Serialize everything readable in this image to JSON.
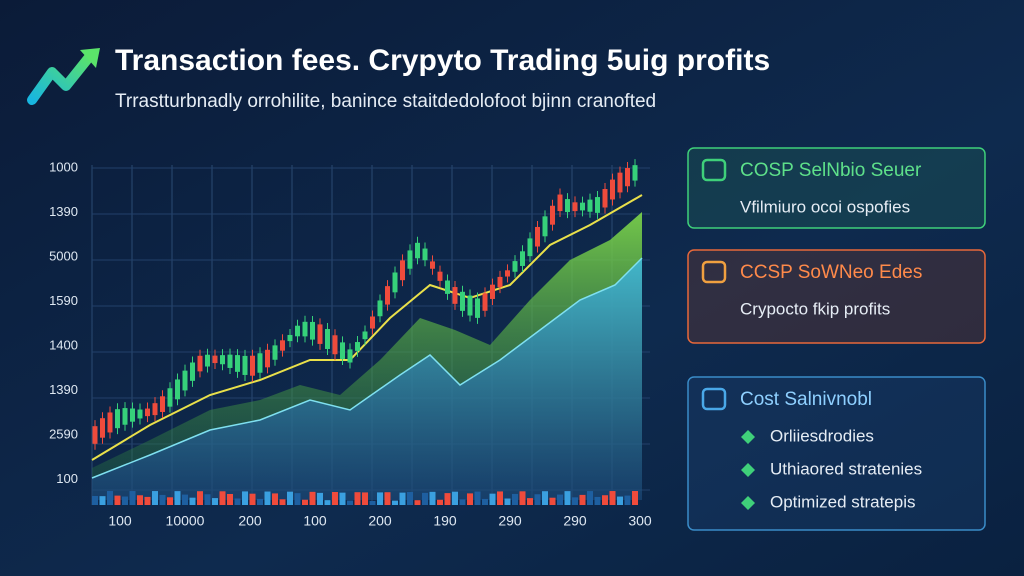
{
  "header": {
    "title": "Transaction fees. Crypyto Trading 5uig profits",
    "subtitle": "Trrastturbnadly orrohilite, banince staitdedolofoot bjinn cranofted"
  },
  "chart": {
    "y_labels": [
      "1000",
      "1390",
      "5000",
      "1590",
      "1400",
      "1390",
      "2590",
      "100"
    ],
    "x_labels": [
      "100",
      "10000",
      "200",
      "100",
      "200",
      "190",
      "290",
      "290",
      "300"
    ]
  },
  "cards": [
    {
      "title": "COSP SelNbio Seuer",
      "items": [
        "Vfilmiuro ocoi ospofies"
      ]
    },
    {
      "title": "CCSP SoWNeo Edes",
      "items": [
        "Crypocto fkip profits"
      ]
    },
    {
      "title": "Cost Salnivnobl",
      "items": [
        "Orliiesdrodies",
        "Uthiaored stratenies",
        "Optimized stratepis"
      ]
    }
  ]
}
